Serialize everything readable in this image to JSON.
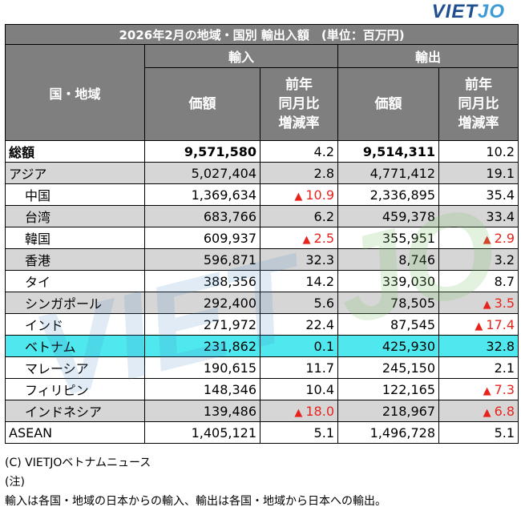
{
  "logo": {
    "text_main": "VIET",
    "text_accent": "JO"
  },
  "watermark": {
    "text_main": "VIET",
    "text_accent": "JO"
  },
  "table": {
    "title": "2026年2月の地域・国別 輸出入額　(単位：百万円)",
    "region_header": "国・地域",
    "import_header": "輸入",
    "export_header": "輸出",
    "value_header": "価額",
    "rate_header": "前年\n同月比\n増減率",
    "rows": [
      {
        "name": "総額",
        "imp_val": "9,571,580",
        "imp_rate": "4.2",
        "exp_val": "9,514,311",
        "exp_rate": "10.2"
      },
      {
        "name": "アジア",
        "imp_val": "5,027,404",
        "imp_rate": "2.8",
        "exp_val": "4,771,412",
        "exp_rate": "19.1"
      },
      {
        "name": "中国",
        "imp_val": "1,369,634",
        "imp_rate": "10.9",
        "exp_val": "2,336,895",
        "exp_rate": "35.4"
      },
      {
        "name": "台湾",
        "imp_val": "683,766",
        "imp_rate": "6.2",
        "exp_val": "459,378",
        "exp_rate": "33.4"
      },
      {
        "name": "韓国",
        "imp_val": "609,937",
        "imp_rate": "2.5",
        "exp_val": "355,951",
        "exp_rate": "2.9"
      },
      {
        "name": "香港",
        "imp_val": "596,871",
        "imp_rate": "32.3",
        "exp_val": "8,746",
        "exp_rate": "3.2"
      },
      {
        "name": "タイ",
        "imp_val": "388,356",
        "imp_rate": "14.2",
        "exp_val": "339,030",
        "exp_rate": "8.7"
      },
      {
        "name": "シンガポール",
        "imp_val": "292,400",
        "imp_rate": "5.6",
        "exp_val": "78,505",
        "exp_rate": "3.5"
      },
      {
        "name": "インド",
        "imp_val": "271,972",
        "imp_rate": "22.4",
        "exp_val": "87,545",
        "exp_rate": "17.4"
      },
      {
        "name": "ベトナム",
        "imp_val": "231,862",
        "imp_rate": "0.1",
        "exp_val": "425,930",
        "exp_rate": "32.8"
      },
      {
        "name": "マレーシア",
        "imp_val": "190,615",
        "imp_rate": "11.7",
        "exp_val": "245,150",
        "exp_rate": "2.1"
      },
      {
        "name": "フィリピン",
        "imp_val": "148,346",
        "imp_rate": "10.4",
        "exp_val": "122,165",
        "exp_rate": "7.3"
      },
      {
        "name": "インドネシア",
        "imp_val": "139,486",
        "imp_rate": "18.0",
        "exp_val": "218,967",
        "exp_rate": "6.8"
      },
      {
        "name": "ASEAN",
        "imp_val": "1,405,121",
        "imp_rate": "5.1",
        "exp_val": "1,496,728",
        "exp_rate": "5.1"
      }
    ],
    "negative_marker": "▲",
    "colors": {
      "header_bg": "#7f7f7f",
      "gray_row": "#d6d6d6",
      "highlight_row": "#4fe8ee",
      "negative": "#e8231c"
    }
  },
  "footer": {
    "credit": "(C) VIETJOベトナムニュース",
    "note_label": "(注)",
    "note_text": "輸入は各国・地域の日本からの輸入、輸出は各国・地域から日本への輸出。"
  }
}
